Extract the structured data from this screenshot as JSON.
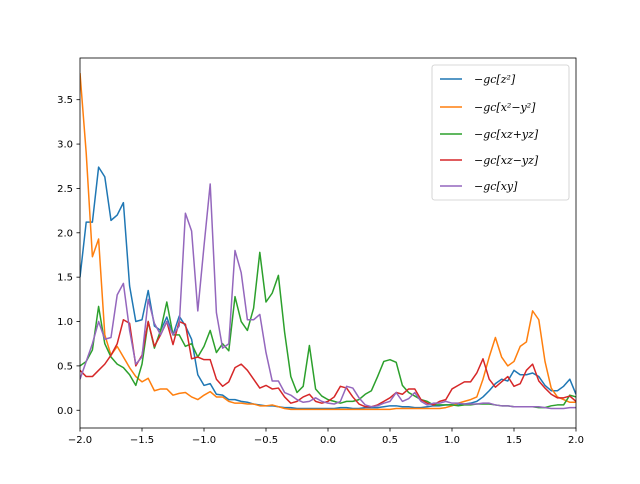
{
  "chart_data": {
    "type": "line",
    "title": "",
    "xlabel": "",
    "ylabel": "",
    "xlim": [
      -2.0,
      2.0
    ],
    "ylim": [
      -0.2,
      3.97
    ],
    "grid": false,
    "legend_position": "top-right",
    "x": {
      "start": -2.0,
      "step": 0.05,
      "count": 81
    },
    "xticks": [
      -2.0,
      -1.5,
      -1.0,
      -0.5,
      0.0,
      0.5,
      1.0,
      1.5,
      2.0
    ],
    "xtick_labels": [
      "−2.0",
      "−1.5",
      "−1.0",
      "−0.5",
      "0.0",
      "0.5",
      "1.0",
      "1.5",
      "2.0"
    ],
    "yticks": [
      0.0,
      0.5,
      1.0,
      1.5,
      2.0,
      2.5,
      3.0,
      3.5
    ],
    "ytick_labels": [
      "0.0",
      "0.5",
      "1.0",
      "1.5",
      "2.0",
      "2.5",
      "3.0",
      "3.5"
    ],
    "series": [
      {
        "name": "−gc[z²]",
        "color": "#1f77b4",
        "values": [
          1.5,
          2.12,
          2.12,
          2.74,
          2.63,
          2.14,
          2.2,
          2.34,
          1.4,
          1.0,
          1.02,
          1.35,
          0.95,
          0.9,
          1.05,
          0.85,
          1.06,
          0.95,
          0.8,
          0.4,
          0.28,
          0.3,
          0.18,
          0.17,
          0.12,
          0.12,
          0.1,
          0.09,
          0.07,
          0.06,
          0.05,
          0.05,
          0.04,
          0.03,
          0.03,
          0.02,
          0.02,
          0.02,
          0.02,
          0.02,
          0.02,
          0.02,
          0.03,
          0.03,
          0.02,
          0.02,
          0.03,
          0.03,
          0.03,
          0.04,
          0.05,
          0.05,
          0.04,
          0.04,
          0.03,
          0.03,
          0.04,
          0.05,
          0.05,
          0.06,
          0.06,
          0.06,
          0.07,
          0.08,
          0.1,
          0.15,
          0.22,
          0.3,
          0.35,
          0.33,
          0.45,
          0.4,
          0.4,
          0.42,
          0.38,
          0.28,
          0.22,
          0.22,
          0.27,
          0.35,
          0.18
        ]
      },
      {
        "name": "−gc[x²−y²]",
        "color": "#ff7f0e",
        "values": [
          3.8,
          2.9,
          1.73,
          1.93,
          0.85,
          0.62,
          0.72,
          0.6,
          0.48,
          0.38,
          0.32,
          0.36,
          0.22,
          0.24,
          0.24,
          0.17,
          0.19,
          0.2,
          0.15,
          0.12,
          0.17,
          0.21,
          0.15,
          0.15,
          0.1,
          0.08,
          0.08,
          0.07,
          0.07,
          0.05,
          0.05,
          0.06,
          0.04,
          0.02,
          0.01,
          0.01,
          0.01,
          0.01,
          0.01,
          0.01,
          0.01,
          0.01,
          0.01,
          0.01,
          0.01,
          0.01,
          0.01,
          0.01,
          0.01,
          0.01,
          0.01,
          0.02,
          0.02,
          0.02,
          0.02,
          0.02,
          0.02,
          0.02,
          0.02,
          0.03,
          0.05,
          0.08,
          0.1,
          0.12,
          0.15,
          0.35,
          0.6,
          0.82,
          0.6,
          0.5,
          0.55,
          0.72,
          0.77,
          1.12,
          1.02,
          0.55,
          0.25,
          0.15,
          0.12,
          0.09,
          0.09
        ]
      },
      {
        "name": "−gc[xz+yz]",
        "color": "#2ca02c",
        "values": [
          0.5,
          0.55,
          0.68,
          1.17,
          0.75,
          0.6,
          0.52,
          0.48,
          0.4,
          0.28,
          0.52,
          1.0,
          0.7,
          0.9,
          1.22,
          0.85,
          0.85,
          0.72,
          0.75,
          0.6,
          0.72,
          0.9,
          0.65,
          0.75,
          0.67,
          1.28,
          1.0,
          0.9,
          1.15,
          1.78,
          1.22,
          1.32,
          1.52,
          0.88,
          0.38,
          0.2,
          0.27,
          0.73,
          0.24,
          0.16,
          0.12,
          0.1,
          0.08,
          0.1,
          0.1,
          0.12,
          0.18,
          0.22,
          0.38,
          0.55,
          0.57,
          0.54,
          0.28,
          0.2,
          0.16,
          0.12,
          0.1,
          0.06,
          0.06,
          0.06,
          0.06,
          0.05,
          0.06,
          0.06,
          0.07,
          0.07,
          0.07,
          0.06,
          0.05,
          0.05,
          0.04,
          0.04,
          0.04,
          0.04,
          0.03,
          0.03,
          0.05,
          0.06,
          0.06,
          0.17,
          0.15
        ]
      },
      {
        "name": "−gc[xz−yz]",
        "color": "#d62728",
        "values": [
          0.45,
          0.38,
          0.38,
          0.45,
          0.52,
          0.62,
          0.75,
          1.02,
          0.98,
          0.5,
          0.62,
          1.0,
          0.72,
          0.85,
          1.0,
          0.74,
          1.0,
          0.97,
          0.58,
          0.6,
          0.57,
          0.57,
          0.35,
          0.27,
          0.32,
          0.48,
          0.52,
          0.45,
          0.35,
          0.25,
          0.28,
          0.24,
          0.25,
          0.15,
          0.08,
          0.1,
          0.15,
          0.18,
          0.1,
          0.08,
          0.1,
          0.15,
          0.27,
          0.25,
          0.15,
          0.07,
          0.04,
          0.04,
          0.06,
          0.1,
          0.14,
          0.2,
          0.18,
          0.24,
          0.24,
          0.12,
          0.08,
          0.06,
          0.1,
          0.12,
          0.24,
          0.28,
          0.32,
          0.32,
          0.42,
          0.58,
          0.35,
          0.26,
          0.32,
          0.38,
          0.27,
          0.3,
          0.45,
          0.52,
          0.33,
          0.25,
          0.18,
          0.14,
          0.14,
          0.16,
          0.1
        ]
      },
      {
        "name": "−gc[xy]",
        "color": "#9467bd",
        "values": [
          0.35,
          0.55,
          0.75,
          1.0,
          0.8,
          0.82,
          1.3,
          1.43,
          0.9,
          0.52,
          0.6,
          1.25,
          0.98,
          0.85,
          1.0,
          0.85,
          0.95,
          2.22,
          2.02,
          1.12,
          1.85,
          2.55,
          1.1,
          0.7,
          0.75,
          1.8,
          1.55,
          1.02,
          1.02,
          1.08,
          0.65,
          0.33,
          0.33,
          0.2,
          0.17,
          0.12,
          0.09,
          0.1,
          0.14,
          0.1,
          0.08,
          0.07,
          0.1,
          0.27,
          0.25,
          0.14,
          0.06,
          0.04,
          0.05,
          0.08,
          0.1,
          0.2,
          0.1,
          0.13,
          0.2,
          0.1,
          0.06,
          0.08,
          0.08,
          0.1,
          0.08,
          0.08,
          0.07,
          0.07,
          0.07,
          0.08,
          0.08,
          0.06,
          0.05,
          0.05,
          0.04,
          0.04,
          0.04,
          0.04,
          0.04,
          0.03,
          0.02,
          0.02,
          0.02,
          0.03,
          0.03
        ]
      }
    ]
  }
}
